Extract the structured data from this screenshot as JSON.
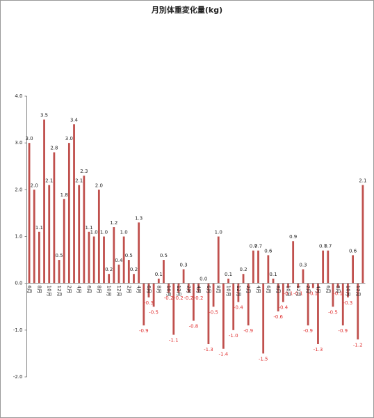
{
  "chart_data": {
    "type": "bar",
    "title": "月別体重変化量(kg)",
    "categories": [
      "6月",
      null,
      "8月",
      null,
      "10月",
      null,
      "12月",
      null,
      "2月",
      null,
      "4月",
      null,
      "6月",
      null,
      "8月",
      null,
      "10月",
      null,
      "12月",
      null,
      "2月",
      null,
      "4月",
      null,
      "6月",
      null,
      "8月",
      null,
      "10月",
      null,
      "12月",
      null,
      "2月",
      null,
      "4月",
      null,
      "6月",
      null,
      "8月",
      null,
      "10月",
      null,
      "12月",
      null,
      "2月",
      null,
      "4月",
      null,
      "6月",
      null,
      "8月",
      null,
      "10月",
      null,
      "12月",
      null,
      "2月",
      null,
      "4月",
      null,
      "6月",
      null,
      "8月",
      null,
      "10月",
      null,
      "12月",
      null
    ],
    "values": [
      3.0,
      2.0,
      1.1,
      3.5,
      2.1,
      2.8,
      0.5,
      1.8,
      3.0,
      3.4,
      2.1,
      2.3,
      1.1,
      1.0,
      2.0,
      1.0,
      0.2,
      1.2,
      0.4,
      1.0,
      0.5,
      0.2,
      1.3,
      -0.9,
      -0.3,
      -0.5,
      0.1,
      0.5,
      -0.2,
      -1.1,
      -0.2,
      0.3,
      -0.2,
      -0.8,
      -0.2,
      0.0,
      -1.3,
      -0.5,
      1.0,
      -1.4,
      0.1,
      -1.0,
      -0.4,
      0.2,
      -0.9,
      0.7,
      0.7,
      -1.5,
      0.6,
      0.1,
      -0.6,
      -0.4,
      -0.1,
      0.9,
      -0.1,
      0.3,
      -0.9,
      -0.1,
      -1.3,
      0.7,
      0.7,
      -0.5,
      -0.1,
      -0.9,
      -0.3,
      0.6,
      -1.2,
      2.1
    ],
    "value_labels": [
      "3.0",
      "2.0",
      "1.1",
      "3.5",
      "2.1",
      "2.8",
      "0.5",
      "1.8",
      "3.0",
      "3.4",
      "2.1",
      "2.3",
      "1.1",
      "1.0",
      "2.0",
      "1.0",
      "0.2",
      "1.2",
      "0.4",
      "1.0",
      "0.5",
      "0.2",
      "1.3",
      "-0.9",
      "-0.3",
      "-0.5",
      "0.1",
      "0.5",
      "-0.2",
      "-1.1",
      "-0.2",
      "0.3",
      "-0.2",
      "-0.8",
      "-0.2",
      "0.0",
      "-1.3",
      "-0.5",
      "1.0",
      "-1.4",
      "0.1",
      "-1.0",
      "-0.4",
      "0.2",
      "-0.9",
      "0.7",
      "0.7",
      "-1.5",
      "0.6",
      "0.1",
      "-0.6",
      "-0.4",
      "-0.1",
      "0.9",
      "-0.1",
      "0.3",
      "-0.9",
      "-0.1",
      "-1.3",
      "0.7",
      "0.7",
      "-0.5",
      "-0.1",
      "-0.9",
      "-0.3",
      "0.6",
      "-1.2",
      "2.1"
    ],
    "color": "#c0504d",
    "negative_label_color": "#e03030",
    "ylim": [
      -2,
      4
    ],
    "yticks": [
      {
        "value": -2,
        "label": "-2.0"
      },
      {
        "value": -1,
        "label": "-1.0"
      },
      {
        "value": 0,
        "label": "0.0"
      },
      {
        "value": 1,
        "label": "1.0"
      },
      {
        "value": 2,
        "label": "2.0"
      },
      {
        "value": 3,
        "label": "3.0"
      },
      {
        "value": 4,
        "label": "4.0"
      }
    ],
    "grid": false
  }
}
